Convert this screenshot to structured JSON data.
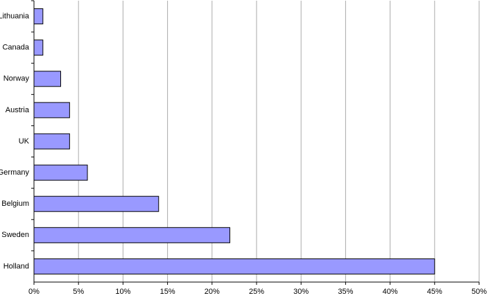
{
  "chart_data": {
    "type": "bar",
    "orientation": "horizontal",
    "categories": [
      "Lithuania",
      "Canada",
      "Norway",
      "Austria",
      "UK",
      "Germany",
      "Belgium",
      "Sweden",
      "Holland"
    ],
    "values": [
      1,
      1,
      3,
      4,
      4,
      6,
      14,
      22,
      45
    ],
    "color": "#9999ff",
    "xlim": [
      0,
      50
    ],
    "xticks": [
      {
        "value": 0,
        "label": "0%"
      },
      {
        "value": 5,
        "label": "5%"
      },
      {
        "value": 10,
        "label": "10%"
      },
      {
        "value": 15,
        "label": "15%"
      },
      {
        "value": 20,
        "label": "20%"
      },
      {
        "value": 25,
        "label": "25%"
      },
      {
        "value": 30,
        "label": "30%"
      },
      {
        "value": 35,
        "label": "35%"
      },
      {
        "value": 40,
        "label": "40%"
      },
      {
        "value": 45,
        "label": "45%"
      },
      {
        "value": 50,
        "label": "50%"
      }
    ],
    "grid": true
  }
}
